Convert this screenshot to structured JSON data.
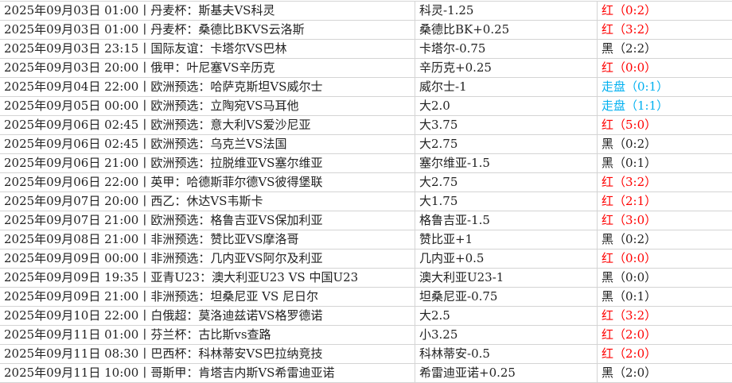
{
  "colors": {
    "red": "#ff0000",
    "blue": "#00b0f0",
    "black": "#222222"
  },
  "rows": [
    {
      "match": "2025年09月03日 01:00丨丹麦杯：斯基夫VS科灵",
      "pick": "科灵-1.25",
      "result": "红（0:2）",
      "status": "red"
    },
    {
      "match": "2025年09月03日 01:00丨丹麦杯：桑德比BKVS云洛斯",
      "pick": "桑德比BK+0.25",
      "result": "红（3:2）",
      "status": "red"
    },
    {
      "match": "2025年09月03日 23:15丨国际友谊：卡塔尔VS巴林",
      "pick": "卡塔尔-0.75",
      "result": "黑（2:2）",
      "status": "black"
    },
    {
      "match": "2025年09月03日 20:00丨俄甲：叶尼塞VS辛历克",
      "pick": "辛历克+0.25",
      "result": "红（0:0）",
      "status": "red"
    },
    {
      "match": "2025年09月04日 22:00丨欧洲预选：哈萨克斯坦VS威尔士",
      "pick": "威尔士-1",
      "result": "走盘（0:1）",
      "status": "blue"
    },
    {
      "match": "2025年09月05日 00:00丨欧洲预选：立陶宛VS马耳他",
      "pick": "大2.0",
      "result": "走盘（1:1）",
      "status": "blue"
    },
    {
      "match": "2025年09月06日 02:45丨欧洲预选：意大利VS爱沙尼亚",
      "pick": "大3.75",
      "result": "红（5:0）",
      "status": "red"
    },
    {
      "match": "2025年09月06日 02:45丨欧洲预选：乌克兰VS法国",
      "pick": "大2.75",
      "result": "黑（0:2）",
      "status": "black"
    },
    {
      "match": "2025年09月06日 21:00丨欧洲预选：拉脱维亚VS塞尔维亚",
      "pick": "塞尔维亚-1.5",
      "result": "黑（0:1）",
      "status": "black"
    },
    {
      "match": "2025年09月06日 22:00丨英甲：哈德斯菲尔德VS彼得堡联",
      "pick": "大2.75",
      "result": "红（3:2）",
      "status": "red"
    },
    {
      "match": "2025年09月07日 20:00丨西乙：休达VS韦斯卡",
      "pick": "大1.75",
      "result": "红（2:1）",
      "status": "red"
    },
    {
      "match": "2025年09月07日 21:00丨欧洲预选：格鲁吉亚VS保加利亚",
      "pick": "格鲁吉亚-1.5",
      "result": "红（3:0）",
      "status": "red"
    },
    {
      "match": "2025年09月08日 21:00丨非洲预选：赞比亚VS摩洛哥",
      "pick": "赞比亚+1",
      "result": "黑（0:2）",
      "status": "black"
    },
    {
      "match": "2025年09月09日 00:00丨非洲预选：几内亚VS阿尔及利亚",
      "pick": "几内亚+0.5",
      "result": "红（0:0）",
      "status": "red"
    },
    {
      "match": "2025年09月09日 19:35丨亚青U23：澳大利亚U23 VS 中国U23",
      "pick": "澳大利亚U23-1",
      "result": "黑（0:0）",
      "status": "black"
    },
    {
      "match": "2025年09月09日 21:00丨非洲预选：坦桑尼亚 VS 尼日尔",
      "pick": "坦桑尼亚-0.75",
      "result": "黑（0:1）",
      "status": "black"
    },
    {
      "match": "2025年09月10日 22:00丨白俄超：莫洛迪兹诺VS格罗德诺",
      "pick": "大2.5",
      "result": "红（3:2）",
      "status": "red"
    },
    {
      "match": "2025年09月11日 01:00丨芬兰杯：古比斯vs查路",
      "pick": "小3.25",
      "result": "红（2:0）",
      "status": "red"
    },
    {
      "match": "2025年09月11日 08:30丨巴西杯：科林蒂安VS巴拉纳竞技",
      "pick": "科林蒂安-0.5",
      "result": "红（2:0）",
      "status": "red"
    },
    {
      "match": "2025年09月11日 10:00丨哥斯甲：肯塔吉内斯VS希雷迪亚诺",
      "pick": "希雷迪亚诺+0.25",
      "result": "黑（2:0）",
      "status": "black"
    }
  ]
}
